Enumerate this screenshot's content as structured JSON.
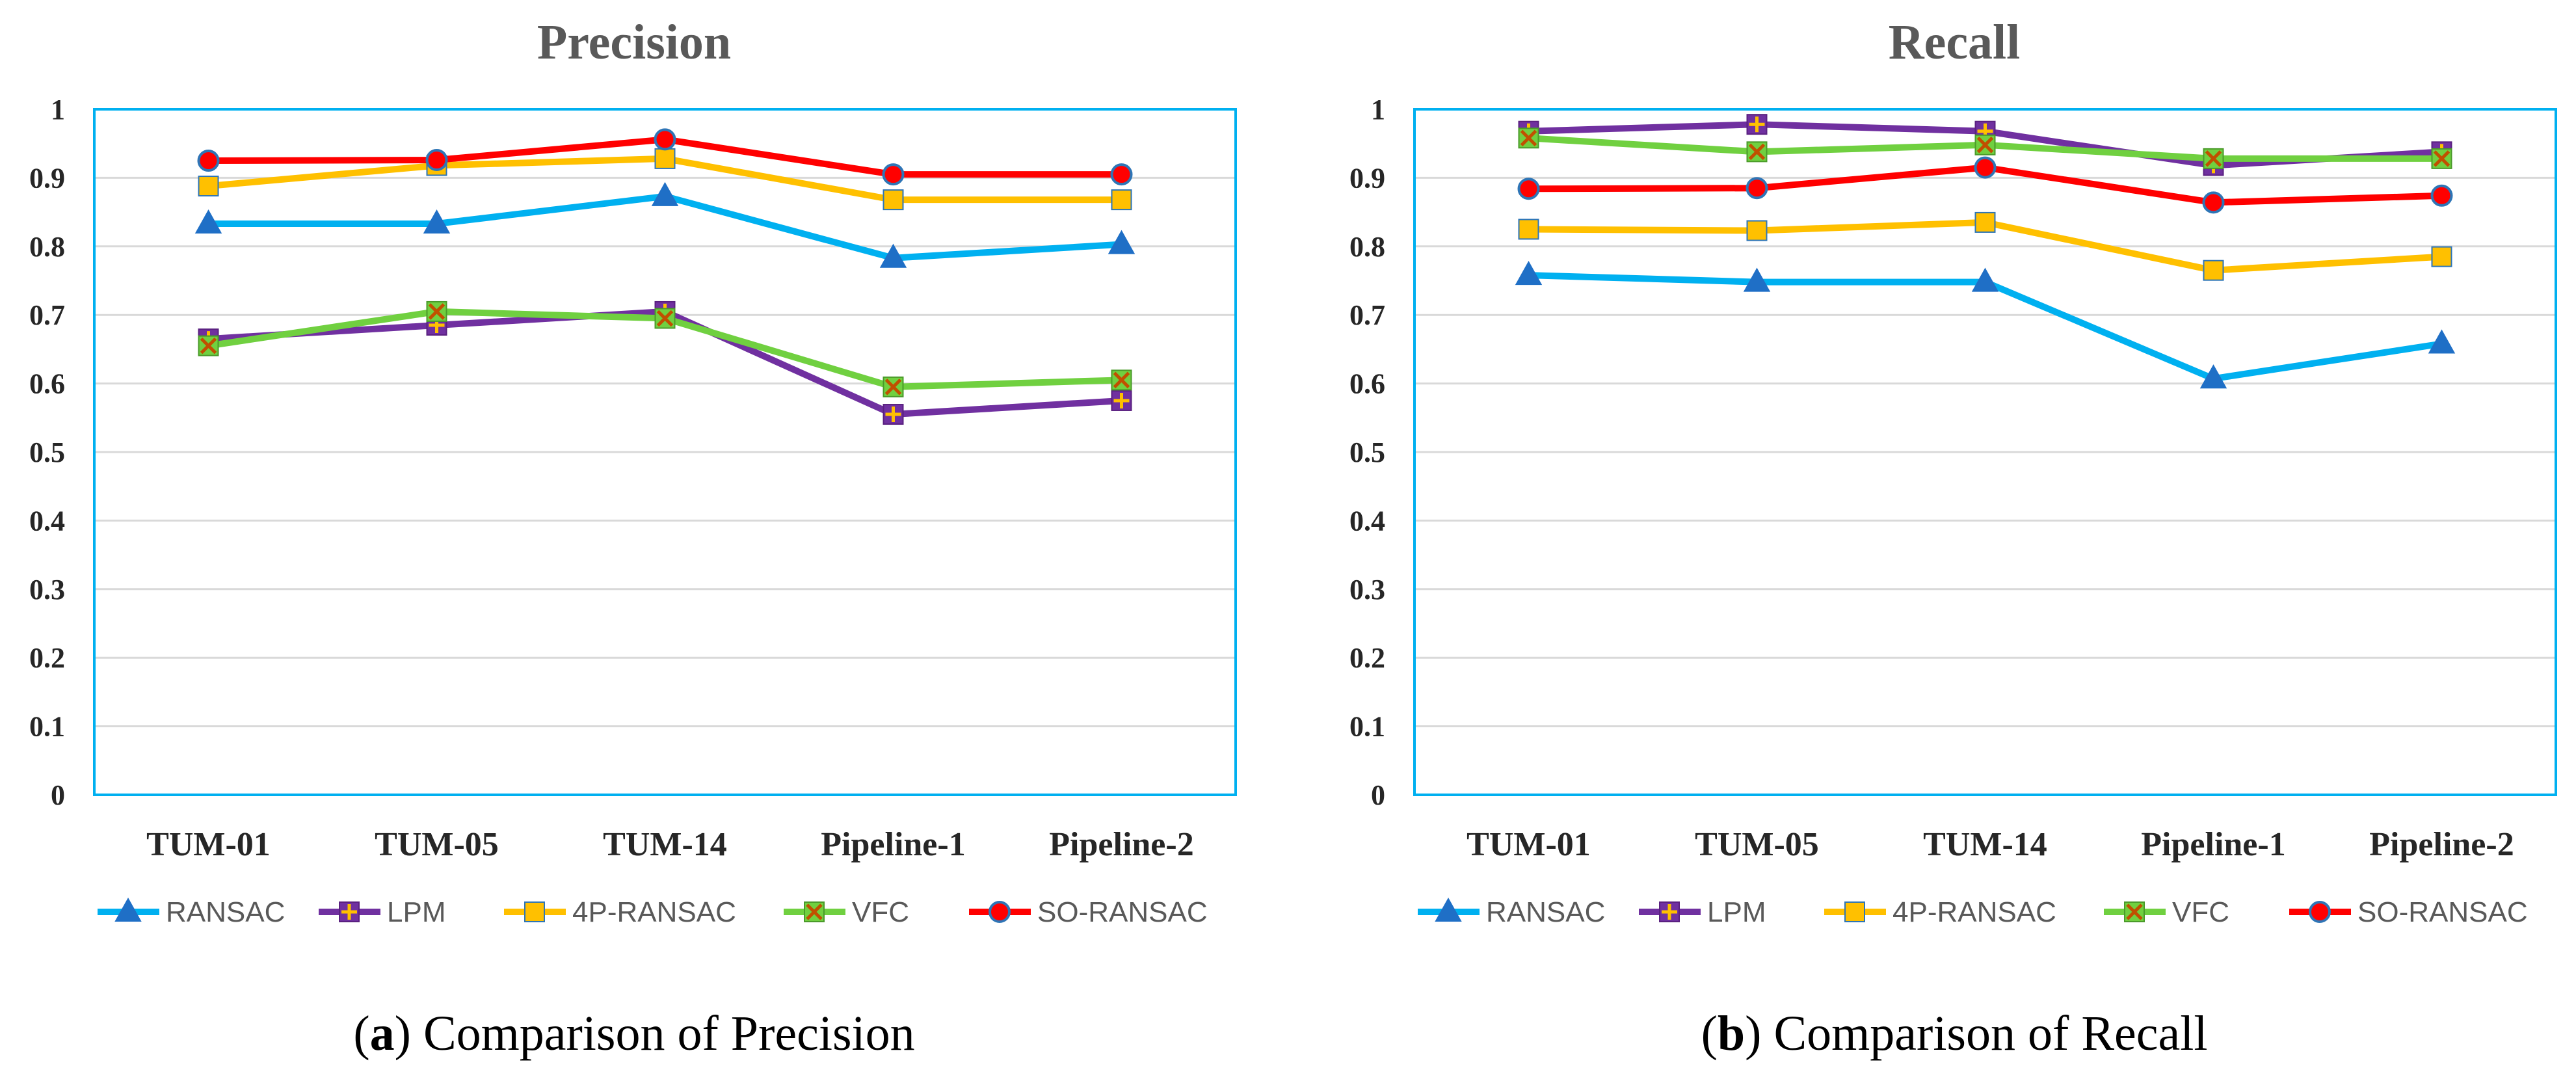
{
  "chart_data": [
    {
      "type": "line",
      "title": "Precision",
      "categories": [
        "TUM-01",
        "TUM-05",
        "TUM-14",
        "Pipeline-1",
        "Pipeline-2"
      ],
      "ylim": [
        0,
        1
      ],
      "yticks": [
        "0",
        "0.1",
        "0.2",
        "0.3",
        "0.4",
        "0.5",
        "0.6",
        "0.7",
        "0.8",
        "0.9",
        "1"
      ],
      "series": [
        {
          "name": "RANSAC",
          "color": "#00B0F0",
          "marker": "triangle",
          "values": [
            0.833,
            0.833,
            0.873,
            0.783,
            0.803
          ]
        },
        {
          "name": "LPM",
          "color": "#7030A0",
          "marker": "plus-square",
          "values": [
            0.665,
            0.685,
            0.705,
            0.555,
            0.575
          ]
        },
        {
          "name": "4P-RANSAC",
          "color": "#FFC000",
          "marker": "square",
          "values": [
            0.888,
            0.918,
            0.928,
            0.868,
            0.868
          ]
        },
        {
          "name": "VFC",
          "color": "#70D040",
          "marker": "x-square",
          "values": [
            0.655,
            0.705,
            0.695,
            0.595,
            0.605
          ]
        },
        {
          "name": "SO-RANSAC",
          "color": "#FF0000",
          "marker": "circle",
          "values": [
            0.925,
            0.926,
            0.956,
            0.905,
            0.905
          ]
        }
      ],
      "caption_letter": "a",
      "caption_text": "Comparison of Precision"
    },
    {
      "type": "line",
      "title": "Recall",
      "categories": [
        "TUM-01",
        "TUM-05",
        "TUM-14",
        "Pipeline-1",
        "Pipeline-2"
      ],
      "ylim": [
        0,
        1
      ],
      "yticks": [
        "0",
        "0.1",
        "0.2",
        "0.3",
        "0.4",
        "0.5",
        "0.6",
        "0.7",
        "0.8",
        "0.9",
        "1"
      ],
      "series": [
        {
          "name": "RANSAC",
          "color": "#00B0F0",
          "marker": "triangle",
          "values": [
            0.758,
            0.748,
            0.748,
            0.607,
            0.658
          ]
        },
        {
          "name": "LPM",
          "color": "#7030A0",
          "marker": "plus-square",
          "values": [
            0.968,
            0.978,
            0.968,
            0.918,
            0.938
          ]
        },
        {
          "name": "4P-RANSAC",
          "color": "#FFC000",
          "marker": "square",
          "values": [
            0.825,
            0.823,
            0.835,
            0.765,
            0.785
          ]
        },
        {
          "name": "VFC",
          "color": "#70D040",
          "marker": "x-square",
          "values": [
            0.958,
            0.938,
            0.948,
            0.928,
            0.928
          ]
        },
        {
          "name": "SO-RANSAC",
          "color": "#FF0000",
          "marker": "circle",
          "values": [
            0.884,
            0.885,
            0.915,
            0.864,
            0.874
          ]
        }
      ],
      "caption_letter": "b",
      "caption_text": "Comparison of Recall"
    }
  ]
}
